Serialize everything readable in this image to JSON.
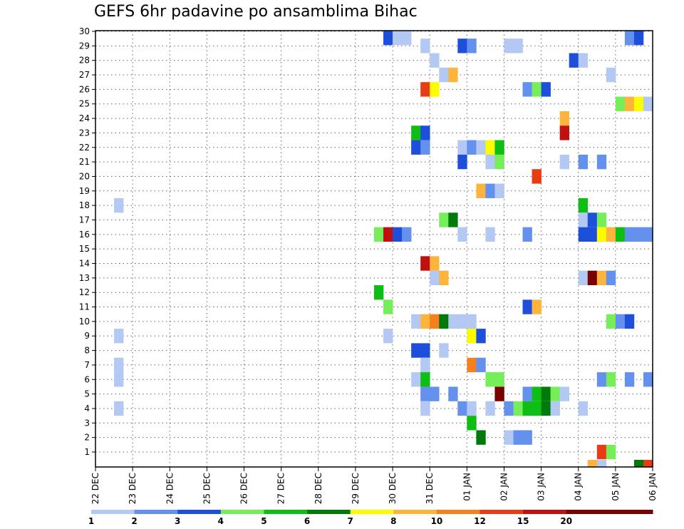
{
  "chart_data": {
    "type": "heatmap",
    "title": "GEFS 6hr padavine po ansamblima Bihac",
    "xlabel": "",
    "ylabel": "",
    "x_tick_labels": [
      "22 DEC",
      "23 DEC",
      "24 DEC",
      "25 DEC",
      "26 DEC",
      "27 DEC",
      "28 DEC",
      "29 DEC",
      "30 DEC",
      "31 DEC",
      "01 JAN",
      "02 JAN",
      "03 JAN",
      "04 JAN",
      "05 JAN",
      "06 JAN"
    ],
    "y_tick_labels": [
      "1",
      "2",
      "3",
      "4",
      "5",
      "6",
      "7",
      "8",
      "9",
      "10",
      "11",
      "12",
      "13",
      "14",
      "15",
      "16",
      "17",
      "18",
      "19",
      "20",
      "21",
      "22",
      "23",
      "24",
      "25",
      "26",
      "27",
      "28",
      "29",
      "30"
    ],
    "x_range": [
      "22 DEC 00Z",
      "06 JAN 00Z"
    ],
    "time_step_hours": 6,
    "y_range": [
      0,
      30
    ],
    "grid": "dotted",
    "legend": {
      "placement": "bottom",
      "levels": [
        {
          "label": "1",
          "color": "#b4c8f4"
        },
        {
          "label": "2",
          "color": "#6490ee"
        },
        {
          "label": "3",
          "color": "#1e4fdb"
        },
        {
          "label": "4",
          "color": "#76ee5a"
        },
        {
          "label": "5",
          "color": "#0ebe14"
        },
        {
          "label": "6",
          "color": "#007a0a"
        },
        {
          "label": "7",
          "color": "#fcfc00"
        },
        {
          "label": "8",
          "color": "#fcb43c"
        },
        {
          "label": "10",
          "color": "#f8801c"
        },
        {
          "label": "12",
          "color": "#e83c14"
        },
        {
          "label": "15",
          "color": "#c01010"
        },
        {
          "label": "20",
          "color": "#7a0000"
        },
        {
          "label": "",
          "color": "#7a0000"
        }
      ]
    },
    "cells": [
      {
        "member": 30,
        "time": "29 DEC 18Z",
        "level": 3
      },
      {
        "member": 30,
        "time": "30 DEC 00Z",
        "level": 1
      },
      {
        "member": 30,
        "time": "30 DEC 06Z",
        "level": 1
      },
      {
        "member": 30,
        "time": "05 JAN 06Z",
        "level": 2
      },
      {
        "member": 30,
        "time": "05 JAN 12Z",
        "level": 3
      },
      {
        "member": 29,
        "time": "30 DEC 18Z",
        "level": 1
      },
      {
        "member": 29,
        "time": "31 DEC 18Z",
        "level": 3
      },
      {
        "member": 29,
        "time": "01 JAN 00Z",
        "level": 2
      },
      {
        "member": 29,
        "time": "02 JAN 00Z",
        "level": 1
      },
      {
        "member": 29,
        "time": "02 JAN 06Z",
        "level": 1
      },
      {
        "member": 28,
        "time": "31 DEC 00Z",
        "level": 1
      },
      {
        "member": 28,
        "time": "03 JAN 18Z",
        "level": 3
      },
      {
        "member": 28,
        "time": "04 JAN 00Z",
        "level": 1
      },
      {
        "member": 27,
        "time": "31 DEC 06Z",
        "level": 1
      },
      {
        "member": 27,
        "time": "31 DEC 12Z",
        "level": 8
      },
      {
        "member": 27,
        "time": "04 JAN 18Z",
        "level": 1
      },
      {
        "member": 26,
        "time": "30 DEC 18Z",
        "level": 12
      },
      {
        "member": 26,
        "time": "31 DEC 00Z",
        "level": 7
      },
      {
        "member": 26,
        "time": "02 JAN 12Z",
        "level": 2
      },
      {
        "member": 26,
        "time": "02 JAN 18Z",
        "level": 4
      },
      {
        "member": 26,
        "time": "03 JAN 00Z",
        "level": 3
      },
      {
        "member": 25,
        "time": "05 JAN 00Z",
        "level": 4
      },
      {
        "member": 25,
        "time": "05 JAN 06Z",
        "level": 8
      },
      {
        "member": 25,
        "time": "05 JAN 12Z",
        "level": 7
      },
      {
        "member": 25,
        "time": "05 JAN 18Z",
        "level": 1
      },
      {
        "member": 24,
        "time": "03 JAN 12Z",
        "level": 8
      },
      {
        "member": 23,
        "time": "30 DEC 12Z",
        "level": 5
      },
      {
        "member": 23,
        "time": "30 DEC 18Z",
        "level": 3
      },
      {
        "member": 23,
        "time": "03 JAN 12Z",
        "level": 15
      },
      {
        "member": 22,
        "time": "30 DEC 12Z",
        "level": 3
      },
      {
        "member": 22,
        "time": "30 DEC 18Z",
        "level": 2
      },
      {
        "member": 22,
        "time": "31 DEC 18Z",
        "level": 1
      },
      {
        "member": 22,
        "time": "01 JAN 00Z",
        "level": 2
      },
      {
        "member": 22,
        "time": "01 JAN 06Z",
        "level": 1
      },
      {
        "member": 22,
        "time": "01 JAN 12Z",
        "level": 7
      },
      {
        "member": 22,
        "time": "01 JAN 18Z",
        "level": 5
      },
      {
        "member": 21,
        "time": "31 DEC 18Z",
        "level": 3
      },
      {
        "member": 21,
        "time": "01 JAN 12Z",
        "level": 1
      },
      {
        "member": 21,
        "time": "01 JAN 18Z",
        "level": 4
      },
      {
        "member": 21,
        "time": "03 JAN 12Z",
        "level": 1
      },
      {
        "member": 21,
        "time": "04 JAN 00Z",
        "level": 2
      },
      {
        "member": 21,
        "time": "04 JAN 12Z",
        "level": 2
      },
      {
        "member": 20,
        "time": "02 JAN 18Z",
        "level": 12
      },
      {
        "member": 19,
        "time": "01 JAN 06Z",
        "level": 8
      },
      {
        "member": 19,
        "time": "01 JAN 12Z",
        "level": 2
      },
      {
        "member": 19,
        "time": "01 JAN 18Z",
        "level": 1
      },
      {
        "member": 18,
        "time": "22 DEC 12Z",
        "level": 1
      },
      {
        "member": 18,
        "time": "04 JAN 00Z",
        "level": 5
      },
      {
        "member": 17,
        "time": "31 DEC 06Z",
        "level": 4
      },
      {
        "member": 17,
        "time": "31 DEC 12Z",
        "level": 6
      },
      {
        "member": 17,
        "time": "04 JAN 00Z",
        "level": 1
      },
      {
        "member": 17,
        "time": "04 JAN 06Z",
        "level": 3
      },
      {
        "member": 17,
        "time": "04 JAN 12Z",
        "level": 4
      },
      {
        "member": 16,
        "time": "29 DEC 12Z",
        "level": 4
      },
      {
        "member": 16,
        "time": "29 DEC 18Z",
        "level": 15
      },
      {
        "member": 16,
        "time": "30 DEC 00Z",
        "level": 3
      },
      {
        "member": 16,
        "time": "30 DEC 06Z",
        "level": 2
      },
      {
        "member": 16,
        "time": "31 DEC 18Z",
        "level": 1
      },
      {
        "member": 16,
        "time": "01 JAN 12Z",
        "level": 1
      },
      {
        "member": 16,
        "time": "02 JAN 12Z",
        "level": 2
      },
      {
        "member": 16,
        "time": "04 JAN 00Z",
        "level": 3
      },
      {
        "member": 16,
        "time": "04 JAN 06Z",
        "level": 3
      },
      {
        "member": 16,
        "time": "04 JAN 12Z",
        "level": 7
      },
      {
        "member": 16,
        "time": "04 JAN 18Z",
        "level": 8
      },
      {
        "member": 16,
        "time": "05 JAN 00Z",
        "level": 5
      },
      {
        "member": 16,
        "time": "05 JAN 06Z",
        "level": 2
      },
      {
        "member": 16,
        "time": "05 JAN 12Z",
        "level": 2
      },
      {
        "member": 16,
        "time": "05 JAN 18Z",
        "level": 2
      },
      {
        "member": 14,
        "time": "30 DEC 18Z",
        "level": 15
      },
      {
        "member": 14,
        "time": "31 DEC 00Z",
        "level": 8
      },
      {
        "member": 13,
        "time": "31 DEC 00Z",
        "level": 1
      },
      {
        "member": 13,
        "time": "31 DEC 06Z",
        "level": 8
      },
      {
        "member": 13,
        "time": "04 JAN 00Z",
        "level": 1
      },
      {
        "member": 13,
        "time": "04 JAN 06Z",
        "level": 20
      },
      {
        "member": 13,
        "time": "04 JAN 12Z",
        "level": 8
      },
      {
        "member": 13,
        "time": "04 JAN 18Z",
        "level": 2
      },
      {
        "member": 12,
        "time": "29 DEC 12Z",
        "level": 5
      },
      {
        "member": 11,
        "time": "29 DEC 18Z",
        "level": 4
      },
      {
        "member": 11,
        "time": "02 JAN 12Z",
        "level": 3
      },
      {
        "member": 11,
        "time": "02 JAN 18Z",
        "level": 8
      },
      {
        "member": 10,
        "time": "30 DEC 12Z",
        "level": 1
      },
      {
        "member": 10,
        "time": "30 DEC 18Z",
        "level": 8
      },
      {
        "member": 10,
        "time": "31 DEC 00Z",
        "level": 10
      },
      {
        "member": 10,
        "time": "31 DEC 06Z",
        "level": 6
      },
      {
        "member": 10,
        "time": "31 DEC 12Z",
        "level": 1
      },
      {
        "member": 10,
        "time": "31 DEC 18Z",
        "level": 1
      },
      {
        "member": 10,
        "time": "01 JAN 00Z",
        "level": 1
      },
      {
        "member": 10,
        "time": "04 JAN 18Z",
        "level": 4
      },
      {
        "member": 10,
        "time": "05 JAN 00Z",
        "level": 2
      },
      {
        "member": 10,
        "time": "05 JAN 06Z",
        "level": 3
      },
      {
        "member": 9,
        "time": "22 DEC 12Z",
        "level": 1
      },
      {
        "member": 9,
        "time": "29 DEC 18Z",
        "level": 1
      },
      {
        "member": 9,
        "time": "01 JAN 00Z",
        "level": 7
      },
      {
        "member": 9,
        "time": "01 JAN 06Z",
        "level": 3
      },
      {
        "member": 8,
        "time": "30 DEC 12Z",
        "level": 3
      },
      {
        "member": 8,
        "time": "30 DEC 18Z",
        "level": 3
      },
      {
        "member": 8,
        "time": "31 DEC 06Z",
        "level": 1
      },
      {
        "member": 7,
        "time": "22 DEC 12Z",
        "level": 1
      },
      {
        "member": 7,
        "time": "30 DEC 18Z",
        "level": 1
      },
      {
        "member": 7,
        "time": "01 JAN 00Z",
        "level": 10
      },
      {
        "member": 7,
        "time": "01 JAN 06Z",
        "level": 2
      },
      {
        "member": 6,
        "time": "22 DEC 12Z",
        "level": 1
      },
      {
        "member": 6,
        "time": "30 DEC 12Z",
        "level": 1
      },
      {
        "member": 6,
        "time": "30 DEC 18Z",
        "level": 5
      },
      {
        "member": 6,
        "time": "01 JAN 12Z",
        "level": 4
      },
      {
        "member": 6,
        "time": "01 JAN 18Z",
        "level": 4
      },
      {
        "member": 6,
        "time": "04 JAN 12Z",
        "level": 2
      },
      {
        "member": 6,
        "time": "04 JAN 18Z",
        "level": 4
      },
      {
        "member": 6,
        "time": "05 JAN 06Z",
        "level": 2
      },
      {
        "member": 6,
        "time": "05 JAN 18Z",
        "level": 2
      },
      {
        "member": 5,
        "time": "30 DEC 18Z",
        "level": 2
      },
      {
        "member": 5,
        "time": "31 DEC 00Z",
        "level": 2
      },
      {
        "member": 5,
        "time": "31 DEC 12Z",
        "level": 2
      },
      {
        "member": 5,
        "time": "01 JAN 18Z",
        "level": 20
      },
      {
        "member": 5,
        "time": "02 JAN 12Z",
        "level": 2
      },
      {
        "member": 5,
        "time": "02 JAN 18Z",
        "level": 5
      },
      {
        "member": 5,
        "time": "03 JAN 00Z",
        "level": 6
      },
      {
        "member": 5,
        "time": "03 JAN 06Z",
        "level": 4
      },
      {
        "member": 5,
        "time": "03 JAN 12Z",
        "level": 1
      },
      {
        "member": 4,
        "time": "22 DEC 12Z",
        "level": 1
      },
      {
        "member": 4,
        "time": "30 DEC 18Z",
        "level": 1
      },
      {
        "member": 4,
        "time": "31 DEC 18Z",
        "level": 2
      },
      {
        "member": 4,
        "time": "01 JAN 00Z",
        "level": 1
      },
      {
        "member": 4,
        "time": "01 JAN 12Z",
        "level": 1
      },
      {
        "member": 4,
        "time": "02 JAN 00Z",
        "level": 2
      },
      {
        "member": 4,
        "time": "02 JAN 06Z",
        "level": 4
      },
      {
        "member": 4,
        "time": "02 JAN 12Z",
        "level": 5
      },
      {
        "member": 4,
        "time": "02 JAN 18Z",
        "level": 5
      },
      {
        "member": 4,
        "time": "03 JAN 00Z",
        "level": 6
      },
      {
        "member": 4,
        "time": "03 JAN 06Z",
        "level": 1
      },
      {
        "member": 4,
        "time": "04 JAN 00Z",
        "level": 1
      },
      {
        "member": 3,
        "time": "01 JAN 00Z",
        "level": 5
      },
      {
        "member": 2,
        "time": "01 JAN 06Z",
        "level": 6
      },
      {
        "member": 2,
        "time": "02 JAN 00Z",
        "level": 1
      },
      {
        "member": 2,
        "time": "02 JAN 06Z",
        "level": 2
      },
      {
        "member": 2,
        "time": "02 JAN 12Z",
        "level": 2
      },
      {
        "member": 1,
        "time": "04 JAN 12Z",
        "level": 12
      },
      {
        "member": 1,
        "time": "04 JAN 18Z",
        "level": 4
      },
      {
        "member": 0,
        "time": "04 JAN 06Z",
        "level": 8
      },
      {
        "member": 0,
        "time": "04 JAN 12Z",
        "level": 1
      },
      {
        "member": 0,
        "time": "05 JAN 12Z",
        "level": 6
      },
      {
        "member": 0,
        "time": "05 JAN 18Z",
        "level": 12
      }
    ]
  }
}
